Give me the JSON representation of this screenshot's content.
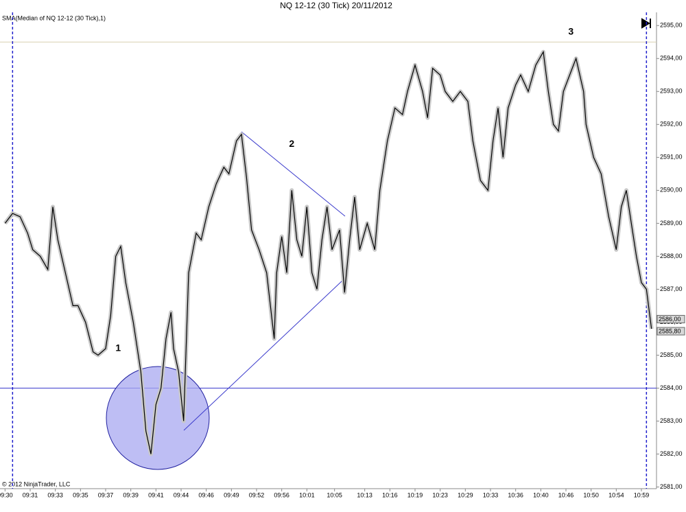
{
  "chart_data": {
    "type": "line",
    "title": "NQ 12-12 (30 Tick)  20/11/2012",
    "indicator_label": "SMA(Median of NQ 12-12 (30 Tick),1)",
    "copyright": "© 2012 NinjaTrader, LLC",
    "x": [
      0,
      3,
      6,
      9,
      11,
      14,
      17,
      19,
      21,
      24,
      27,
      29,
      32,
      35,
      37,
      40,
      42,
      44,
      46,
      48,
      51,
      54,
      56,
      58,
      60,
      62,
      64,
      66,
      67,
      69,
      71,
      73,
      76,
      78,
      81,
      84,
      87,
      89,
      92,
      94,
      96,
      98,
      101,
      104,
      107,
      108,
      110,
      112,
      114,
      116,
      118,
      120,
      122,
      124,
      126,
      128,
      130,
      133,
      135,
      137,
      139,
      141,
      144,
      147,
      149,
      152,
      155,
      158,
      160,
      163,
      166,
      168,
      170,
      173,
      175,
      178,
      181,
      184,
      186,
      189,
      192,
      194,
      196,
      198,
      200,
      203,
      205,
      208,
      211,
      214,
      216,
      218,
      220,
      222,
      225,
      227,
      230,
      231,
      234,
      237,
      240,
      243,
      245,
      247,
      249,
      251,
      253,
      255,
      257
    ],
    "series": [
      {
        "name": "NQ 12-12 (30 Tick)",
        "color": "#000000",
        "values": [
          2589.0,
          2589.3,
          2589.2,
          2588.7,
          2588.2,
          2588.0,
          2587.6,
          2589.5,
          2588.5,
          2587.5,
          2586.5,
          2586.5,
          2586.0,
          2585.1,
          2585.0,
          2585.2,
          2586.2,
          2588.0,
          2588.3,
          2587.2,
          2586.0,
          2584.5,
          2582.7,
          2582.0,
          2583.5,
          2584.0,
          2585.5,
          2586.3,
          2585.2,
          2584.5,
          2583.0,
          2587.5,
          2588.7,
          2588.5,
          2589.5,
          2590.2,
          2590.7,
          2590.5,
          2591.5,
          2591.7,
          2590.4,
          2588.8,
          2588.2,
          2587.5,
          2585.5,
          2587.5,
          2588.6,
          2587.5,
          2590.0,
          2588.5,
          2588.0,
          2589.5,
          2587.5,
          2587.0,
          2588.5,
          2589.5,
          2588.2,
          2588.8,
          2586.9,
          2588.5,
          2589.8,
          2588.2,
          2589.0,
          2588.2,
          2590.0,
          2591.5,
          2592.5,
          2592.3,
          2593.0,
          2593.8,
          2593.0,
          2592.2,
          2593.7,
          2593.5,
          2593.0,
          2592.7,
          2593.0,
          2592.7,
          2591.5,
          2590.3,
          2590.0,
          2591.5,
          2592.5,
          2591.0,
          2592.5,
          2593.2,
          2593.5,
          2593.0,
          2593.8,
          2594.2,
          2593.0,
          2592.0,
          2591.8,
          2593.0,
          2593.6,
          2594.0,
          2593.0,
          2592.0,
          2591.0,
          2590.5,
          2589.2,
          2588.2,
          2589.5,
          2590.0,
          2589.0,
          2588.0,
          2587.2,
          2587.0,
          2585.8
        ]
      }
    ],
    "xlim": [
      -2,
      259
    ],
    "xticks": [
      {
        "value": 0,
        "label": "09:30"
      },
      {
        "value": 10,
        "label": "09:31"
      },
      {
        "value": 20,
        "label": "09:33"
      },
      {
        "value": 30,
        "label": "09:35"
      },
      {
        "value": 40,
        "label": "09:37"
      },
      {
        "value": 50,
        "label": "09:39"
      },
      {
        "value": 60,
        "label": "09:41"
      },
      {
        "value": 70,
        "label": "09:44"
      },
      {
        "value": 80,
        "label": "09:46"
      },
      {
        "value": 90,
        "label": "09:49"
      },
      {
        "value": 100,
        "label": "09:52"
      },
      {
        "value": 110,
        "label": "09:56"
      },
      {
        "value": 120,
        "label": "10:01"
      },
      {
        "value": 131,
        "label": "10:05"
      },
      {
        "value": 143,
        "label": "10:13"
      },
      {
        "value": 153,
        "label": "10:16"
      },
      {
        "value": 163,
        "label": "10:19"
      },
      {
        "value": 173,
        "label": "10:23"
      },
      {
        "value": 183,
        "label": "10:29"
      },
      {
        "value": 193,
        "label": "10:33"
      },
      {
        "value": 203,
        "label": "10:36"
      },
      {
        "value": 213,
        "label": "10:40"
      },
      {
        "value": 223,
        "label": "10:46"
      },
      {
        "value": 233,
        "label": "10:50"
      },
      {
        "value": 243,
        "label": "10:54"
      },
      {
        "value": 253,
        "label": "10:59"
      }
    ],
    "ylim": [
      2580.95,
      2595.4
    ],
    "yticks": [
      {
        "value": 2581,
        "label": "2581,00"
      },
      {
        "value": 2582,
        "label": "2582,00"
      },
      {
        "value": 2583,
        "label": "2583,00"
      },
      {
        "value": 2584,
        "label": "2584,00"
      },
      {
        "value": 2585,
        "label": "2585,00"
      },
      {
        "value": 2586,
        "label": "2586,00"
      },
      {
        "value": 2587,
        "label": "2587,00"
      },
      {
        "value": 2588,
        "label": "2588,00"
      },
      {
        "value": 2589,
        "label": "2589,00"
      },
      {
        "value": 2590,
        "label": "2590,00"
      },
      {
        "value": 2591,
        "label": "2591,00"
      },
      {
        "value": 2592,
        "label": "2592,00"
      },
      {
        "value": 2593,
        "label": "2593,00"
      },
      {
        "value": 2594,
        "label": "2594,00"
      },
      {
        "value": 2595,
        "label": "2595,00"
      }
    ],
    "price_labels": [
      {
        "value": 2586.0,
        "label": "2586,00"
      },
      {
        "value": 2585.8,
        "label": "2585,80"
      }
    ],
    "hlines": [
      {
        "value": 2584.0,
        "color": "#3a3acc"
      },
      {
        "value": 2594.5,
        "color": "#d8d0b0"
      }
    ],
    "vlines": [
      3,
      255
    ],
    "annotations": [
      {
        "text": "1",
        "x": 45,
        "y": 2585.2
      },
      {
        "text": "2",
        "x": 114,
        "y": 2591.4
      },
      {
        "text": "3",
        "x": 225,
        "y": 2594.8
      }
    ]
  }
}
